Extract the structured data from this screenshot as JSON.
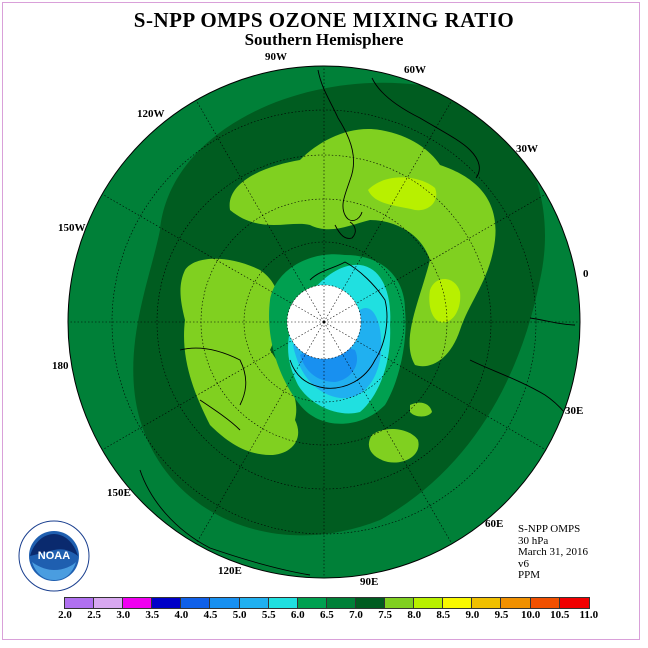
{
  "header": {
    "title": "S-NPP OMPS OZONE MIXING RATIO",
    "subtitle": "Southern Hemisphere"
  },
  "longitude_labels": {
    "lon_90w": "90W",
    "lon_60w": "60W",
    "lon_30w": "30W",
    "lon_0": "0",
    "lon_30e": "30E",
    "lon_60e": "60E",
    "lon_90e": "90E",
    "lon_120e": "120E",
    "lon_150e": "150E",
    "lon_180": "180",
    "lon_150w": "150W",
    "lon_120w": "120W"
  },
  "info": {
    "instrument": "S-NPP OMPS",
    "level": "30 hPa",
    "date": "March 31, 2016",
    "version": "v6",
    "units": "PPM"
  },
  "logo": {
    "text": "NOAA",
    "ring_text": "NATIONAL OCEANIC AND ATMOSPHERIC ADMINISTRATION · U.S. DEPARTMENT OF COMMERCE"
  },
  "colorbar": {
    "ticks": [
      "2.0",
      "2.5",
      "3.0",
      "3.5",
      "4.0",
      "4.5",
      "5.0",
      "5.5",
      "6.0",
      "6.5",
      "7.0",
      "7.5",
      "8.0",
      "8.5",
      "9.0",
      "9.5",
      "10.0",
      "10.5",
      "11.0"
    ],
    "colors": [
      "#b070f0",
      "#d8a8f0",
      "#f000f0",
      "#0000c8",
      "#1060e8",
      "#1890f0",
      "#20b0f0",
      "#20e0e0",
      "#00a050",
      "#008038",
      "#005c20",
      "#80d020",
      "#b8f000",
      "#f8f800",
      "#f0c000",
      "#f09000",
      "#f05000",
      "#f00000",
      "#804020"
    ]
  },
  "chart_data": {
    "type": "heatmap",
    "title": "S-NPP OMPS OZONE MIXING RATIO",
    "subtitle": "Southern Hemisphere",
    "projection": "south polar stereographic",
    "pressure_level": "30 hPa",
    "date": "March 31, 2016",
    "units": "PPM",
    "scale_min": 2.0,
    "scale_max": 11.0,
    "scale_step": 0.5,
    "background_level_range": [
      6.5,
      7.0
    ],
    "features": [
      {
        "name": "pole data gap",
        "value": null
      },
      {
        "name": "low over Antarctica",
        "value_range": [
          4.5,
          5.5
        ]
      },
      {
        "name": "mid-latitude maxima",
        "value_range": [
          7.5,
          8.5
        ]
      },
      {
        "name": "ring around pole",
        "value_range": [
          6.0,
          6.5
        ]
      }
    ]
  }
}
